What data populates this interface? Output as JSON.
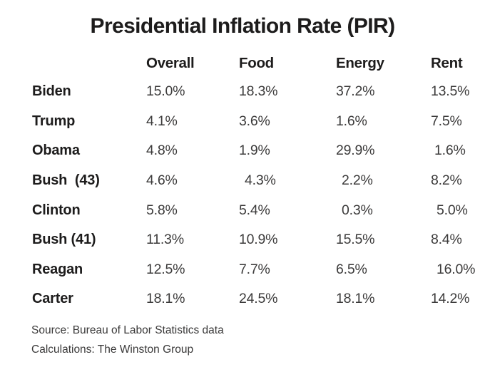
{
  "title": "Presidential Inflation Rate (PIR)",
  "table": {
    "columns": [
      "Overall",
      "Food",
      "Energy",
      "Rent"
    ],
    "rows": [
      {
        "name": "Biden",
        "values": [
          "15.0%",
          "18.3%",
          "37.2%",
          "13.5%"
        ]
      },
      {
        "name": "Trump",
        "values": [
          "4.1%",
          "3.6%",
          "1.6%",
          "7.5%"
        ]
      },
      {
        "name": "Obama",
        "values": [
          "4.8%",
          "1.9%",
          "29.9%",
          "1.6%"
        ]
      },
      {
        "name": "Bush  (43)",
        "values": [
          "4.6%",
          "4.3%",
          "2.2%",
          "8.2%"
        ]
      },
      {
        "name": "Clinton",
        "values": [
          "5.8%",
          "5.4%",
          "0.3%",
          "5.0%"
        ]
      },
      {
        "name": "Bush (41)",
        "values": [
          "11.3%",
          "10.9%",
          "15.5%",
          "8.4%"
        ]
      },
      {
        "name": "Reagan",
        "values": [
          "12.5%",
          "7.7%",
          "6.5%",
          "16.0%"
        ]
      },
      {
        "name": "Carter",
        "values": [
          "18.1%",
          "24.5%",
          "18.1%",
          "14.2%"
        ]
      }
    ]
  },
  "footer": {
    "source": "Source: Bureau of Labor Statistics data",
    "calculations": "Calculations: The Winston Group"
  },
  "colors": {
    "text_bold": "#1d1c1c",
    "text_values": "#3c3b3b",
    "background": "#ffffff"
  },
  "chart_data": {
    "type": "table",
    "title": "Presidential Inflation Rate (PIR)",
    "columns": [
      "Overall",
      "Food",
      "Energy",
      "Rent"
    ],
    "categories": [
      "Biden",
      "Trump",
      "Obama",
      "Bush (43)",
      "Clinton",
      "Bush (41)",
      "Reagan",
      "Carter"
    ],
    "series": [
      {
        "name": "Overall",
        "values": [
          15.0,
          4.1,
          4.8,
          4.6,
          5.8,
          11.3,
          12.5,
          18.1
        ]
      },
      {
        "name": "Food",
        "values": [
          18.3,
          3.6,
          1.9,
          4.3,
          5.4,
          10.9,
          7.7,
          24.5
        ]
      },
      {
        "name": "Energy",
        "values": [
          37.2,
          1.6,
          29.9,
          2.2,
          0.3,
          15.5,
          6.5,
          18.1
        ]
      },
      {
        "name": "Rent",
        "values": [
          13.5,
          7.5,
          1.6,
          8.2,
          5.0,
          8.4,
          16.0,
          14.2
        ]
      }
    ],
    "unit": "%",
    "source": "Source: Bureau of Labor Statistics data",
    "calculations": "Calculations: The Winston Group"
  }
}
